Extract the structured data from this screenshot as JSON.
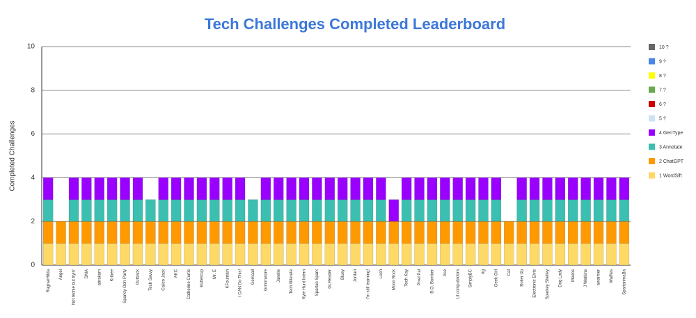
{
  "chart_data": {
    "type": "stacked_bar",
    "title": "Tech Challenges Completed Leaderboard",
    "y_label": "Completed Challenges",
    "categories": [
      "RagnarHilda",
      "Angel",
      "Not techie but tryin'",
      "DMA",
      "abrakam",
      "Kribee",
      "Sparkly Ooh Party",
      "Outback",
      "Tech Savvy",
      "Calico Jack",
      "AKC",
      "Catherine Curtis",
      "Buttercup",
      "Mr. E",
      "KFountain",
      "I CAN Do This!",
      "Gemaall",
      "Grimmwore",
      "Janelle",
      "Tech Illiterate",
      "Kyle Hunt Intern",
      "Spartan Spark",
      "GLReader",
      "Bluey",
      "Jordan",
      "I'm still learning!",
      "Loch",
      "Moon Rock",
      "Tech Kay",
      "Pixel Pal",
      "B.O. Bomber",
      "Ace",
      "Lil computadora",
      "SimplyBC",
      "rtg",
      "Geek Girl",
      "Cat",
      "Boiler Up",
      "Electronic Elvis",
      "Sparkey Shelley",
      "Dog Lady",
      "Meebs",
      "J Watkins",
      "awarmer",
      "Waffles",
      "SpartanmaBa"
    ],
    "series": [
      {
        "name": "1 WordSift",
        "color": "#ffd966",
        "values": [
          1,
          1,
          1,
          1,
          1,
          1,
          1,
          1,
          1,
          1,
          1,
          1,
          1,
          1,
          1,
          1,
          1,
          1,
          1,
          1,
          1,
          1,
          1,
          1,
          1,
          1,
          1,
          1,
          1,
          1,
          1,
          1,
          1,
          1,
          1,
          1,
          1,
          1,
          1,
          1,
          1,
          1,
          1,
          1,
          1,
          1
        ]
      },
      {
        "name": "2 ChatGPT",
        "color": "#ff9900",
        "values": [
          1,
          1,
          1,
          1,
          1,
          1,
          1,
          1,
          1,
          1,
          1,
          1,
          1,
          1,
          1,
          1,
          1,
          1,
          1,
          1,
          1,
          1,
          1,
          1,
          1,
          1,
          1,
          1,
          1,
          1,
          1,
          1,
          1,
          1,
          1,
          1,
          1,
          1,
          1,
          1,
          1,
          1,
          1,
          1,
          1,
          1
        ]
      },
      {
        "name": "3 Annotate",
        "color": "#3bbfb0",
        "values": [
          1,
          0,
          1,
          1,
          1,
          1,
          1,
          1,
          1,
          1,
          1,
          1,
          1,
          1,
          1,
          1,
          1,
          1,
          1,
          1,
          1,
          1,
          1,
          1,
          1,
          1,
          1,
          0,
          1,
          1,
          1,
          1,
          1,
          1,
          1,
          1,
          0,
          1,
          1,
          1,
          1,
          1,
          1,
          1,
          1,
          1
        ]
      },
      {
        "name": "4 GenType",
        "color": "#9900ff",
        "values": [
          1,
          0,
          1,
          1,
          1,
          1,
          1,
          1,
          0,
          1,
          1,
          1,
          1,
          1,
          1,
          1,
          0,
          1,
          1,
          1,
          1,
          1,
          1,
          1,
          1,
          1,
          1,
          1,
          1,
          1,
          1,
          1,
          1,
          1,
          1,
          1,
          0,
          1,
          1,
          1,
          1,
          1,
          1,
          1,
          1,
          1
        ]
      },
      {
        "name": "5 ?",
        "color": "#cfe2f3",
        "values": [
          0,
          0,
          0,
          0,
          0,
          0,
          0,
          0,
          0,
          0,
          0,
          0,
          0,
          0,
          0,
          0,
          0,
          0,
          0,
          0,
          0,
          0,
          0,
          0,
          0,
          0,
          0,
          0,
          0,
          0,
          0,
          0,
          0,
          0,
          0,
          0,
          0,
          0,
          0,
          0,
          0,
          0,
          0,
          0,
          0,
          0
        ]
      },
      {
        "name": "6 ?",
        "color": "#cc0000",
        "values": [
          0,
          0,
          0,
          0,
          0,
          0,
          0,
          0,
          0,
          0,
          0,
          0,
          0,
          0,
          0,
          0,
          0,
          0,
          0,
          0,
          0,
          0,
          0,
          0,
          0,
          0,
          0,
          0,
          0,
          0,
          0,
          0,
          0,
          0,
          0,
          0,
          0,
          0,
          0,
          0,
          0,
          0,
          0,
          0,
          0,
          0
        ]
      },
      {
        "name": "7 ?",
        "color": "#6aa84f",
        "values": [
          0,
          0,
          0,
          0,
          0,
          0,
          0,
          0,
          0,
          0,
          0,
          0,
          0,
          0,
          0,
          0,
          0,
          0,
          0,
          0,
          0,
          0,
          0,
          0,
          0,
          0,
          0,
          0,
          0,
          0,
          0,
          0,
          0,
          0,
          0,
          0,
          0,
          0,
          0,
          0,
          0,
          0,
          0,
          0,
          0,
          0
        ]
      },
      {
        "name": "8 ?",
        "color": "#ffff00",
        "values": [
          0,
          0,
          0,
          0,
          0,
          0,
          0,
          0,
          0,
          0,
          0,
          0,
          0,
          0,
          0,
          0,
          0,
          0,
          0,
          0,
          0,
          0,
          0,
          0,
          0,
          0,
          0,
          0,
          0,
          0,
          0,
          0,
          0,
          0,
          0,
          0,
          0,
          0,
          0,
          0,
          0,
          0,
          0,
          0,
          0,
          0
        ]
      },
      {
        "name": "9 ?",
        "color": "#4a86e8",
        "values": [
          0,
          0,
          0,
          0,
          0,
          0,
          0,
          0,
          0,
          0,
          0,
          0,
          0,
          0,
          0,
          0,
          0,
          0,
          0,
          0,
          0,
          0,
          0,
          0,
          0,
          0,
          0,
          0,
          0,
          0,
          0,
          0,
          0,
          0,
          0,
          0,
          0,
          0,
          0,
          0,
          0,
          0,
          0,
          0,
          0,
          0
        ]
      },
      {
        "name": "10 ?",
        "color": "#666666",
        "values": [
          0,
          0,
          0,
          0,
          0,
          0,
          0,
          0,
          0,
          0,
          0,
          0,
          0,
          0,
          0,
          0,
          0,
          0,
          0,
          0,
          0,
          0,
          0,
          0,
          0,
          0,
          0,
          0,
          0,
          0,
          0,
          0,
          0,
          0,
          0,
          0,
          0,
          0,
          0,
          0,
          0,
          0,
          0,
          0,
          0,
          0
        ]
      }
    ],
    "ylim": [
      0,
      10
    ],
    "yticks": [
      0,
      2,
      4,
      6,
      8,
      10
    ],
    "grid": true,
    "legend": "right"
  }
}
